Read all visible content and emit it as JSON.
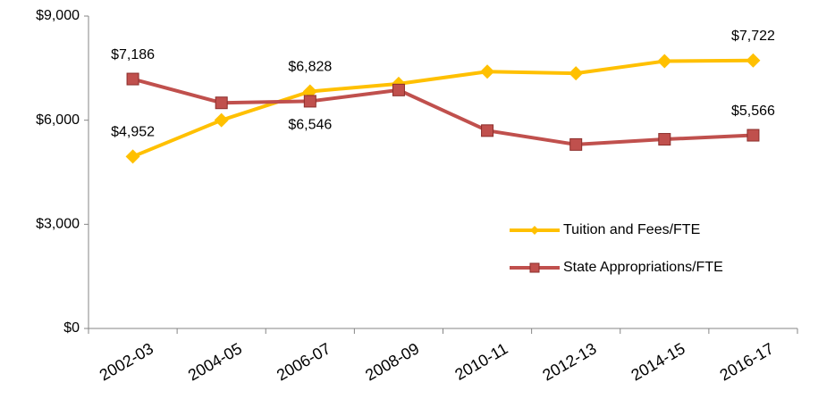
{
  "chart_data": {
    "type": "line",
    "categories": [
      "2002-03",
      "2004-05",
      "2006-07",
      "2008-09",
      "2010-11",
      "2012-13",
      "2014-15",
      "2016-17"
    ],
    "series": [
      {
        "name": "Tuition and Fees/FTE",
        "color": "#FFC000",
        "marker": "diamond",
        "values": [
          4952,
          6000,
          6828,
          7050,
          7400,
          7350,
          7700,
          7722
        ],
        "value_labels": [
          "$4,952",
          null,
          "$6,828",
          null,
          null,
          null,
          null,
          "$7,722"
        ]
      },
      {
        "name": "State Appropriations/FTE",
        "color": "#C0504D",
        "marker": "square",
        "values": [
          7186,
          6500,
          6546,
          6870,
          5700,
          5300,
          5450,
          5566
        ],
        "value_labels": [
          "$7,186",
          null,
          "$6,546",
          null,
          null,
          null,
          null,
          "$5,566"
        ]
      }
    ],
    "ylim": [
      0,
      9000
    ],
    "yticks": [
      {
        "value": 0,
        "label": "$0"
      },
      {
        "value": 3000,
        "label": "$3,000"
      },
      {
        "value": 6000,
        "label": "$6,000"
      },
      {
        "value": 9000,
        "label": "$9,000"
      }
    ],
    "grid": false,
    "legend": "right"
  }
}
